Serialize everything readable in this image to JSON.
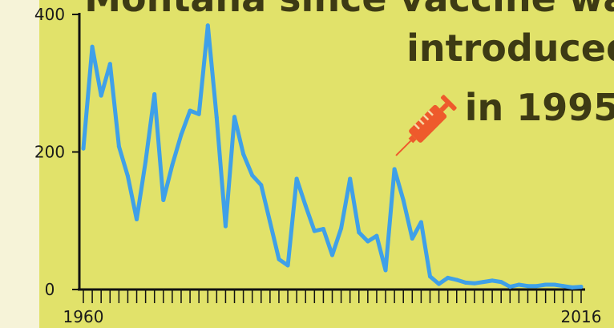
{
  "title_lines": [
    "Montana since vaccine was",
    "introduced",
    "in 1995"
  ],
  "chart_data": {
    "type": "line",
    "title": "",
    "xlabel": "",
    "ylabel": "",
    "x": [
      1960,
      1961,
      1962,
      1963,
      1964,
      1965,
      1966,
      1967,
      1968,
      1969,
      1970,
      1971,
      1972,
      1973,
      1974,
      1975,
      1976,
      1977,
      1978,
      1979,
      1980,
      1981,
      1982,
      1983,
      1984,
      1985,
      1986,
      1987,
      1988,
      1989,
      1990,
      1991,
      1992,
      1993,
      1994,
      1995,
      1996,
      1997,
      1998,
      1999,
      2000,
      2001,
      2002,
      2003,
      2004,
      2005,
      2006,
      2007,
      2008,
      2009,
      2010,
      2011,
      2012,
      2013,
      2014,
      2015,
      2016
    ],
    "values": [
      205,
      353,
      282,
      328,
      208,
      165,
      102,
      186,
      284,
      130,
      181,
      225,
      260,
      255,
      384,
      250,
      92,
      251,
      197,
      166,
      152,
      98,
      44,
      35,
      161,
      122,
      85,
      88,
      50,
      89,
      161,
      83,
      70,
      78,
      28,
      175,
      130,
      74,
      98,
      19,
      8,
      17,
      14,
      10,
      9,
      11,
      13,
      11,
      4,
      7,
      5,
      5,
      7,
      7,
      5,
      3,
      4
    ],
    "x_ticks": [
      "1960",
      "2016"
    ],
    "y_ticks": [
      "0",
      "200",
      "400"
    ],
    "ylim": [
      0,
      400
    ],
    "xlim": [
      1960,
      2016
    ],
    "grid": false,
    "annotation_icon": "syringe-icon",
    "colors": {
      "line": "#3fa0e8",
      "background": "#e1e26a",
      "syringe": "#ee5a2c",
      "title": "#3d3a14"
    }
  }
}
